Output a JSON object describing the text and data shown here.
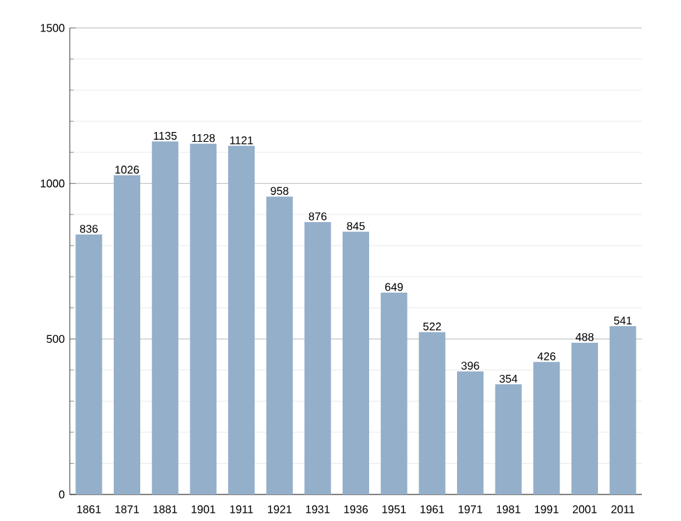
{
  "chart_data": {
    "type": "bar",
    "categories": [
      "1861",
      "1871",
      "1881",
      "1901",
      "1911",
      "1921",
      "1931",
      "1936",
      "1951",
      "1961",
      "1971",
      "1981",
      "1991",
      "2001",
      "2011"
    ],
    "values": [
      836,
      1026,
      1135,
      1128,
      1121,
      958,
      876,
      845,
      649,
      522,
      396,
      354,
      426,
      488,
      541
    ],
    "color": "#94afca",
    "ylim": [
      0,
      1500
    ],
    "yticks": [
      0,
      500,
      1000,
      1500
    ],
    "grid": "y",
    "data_labels": true
  }
}
